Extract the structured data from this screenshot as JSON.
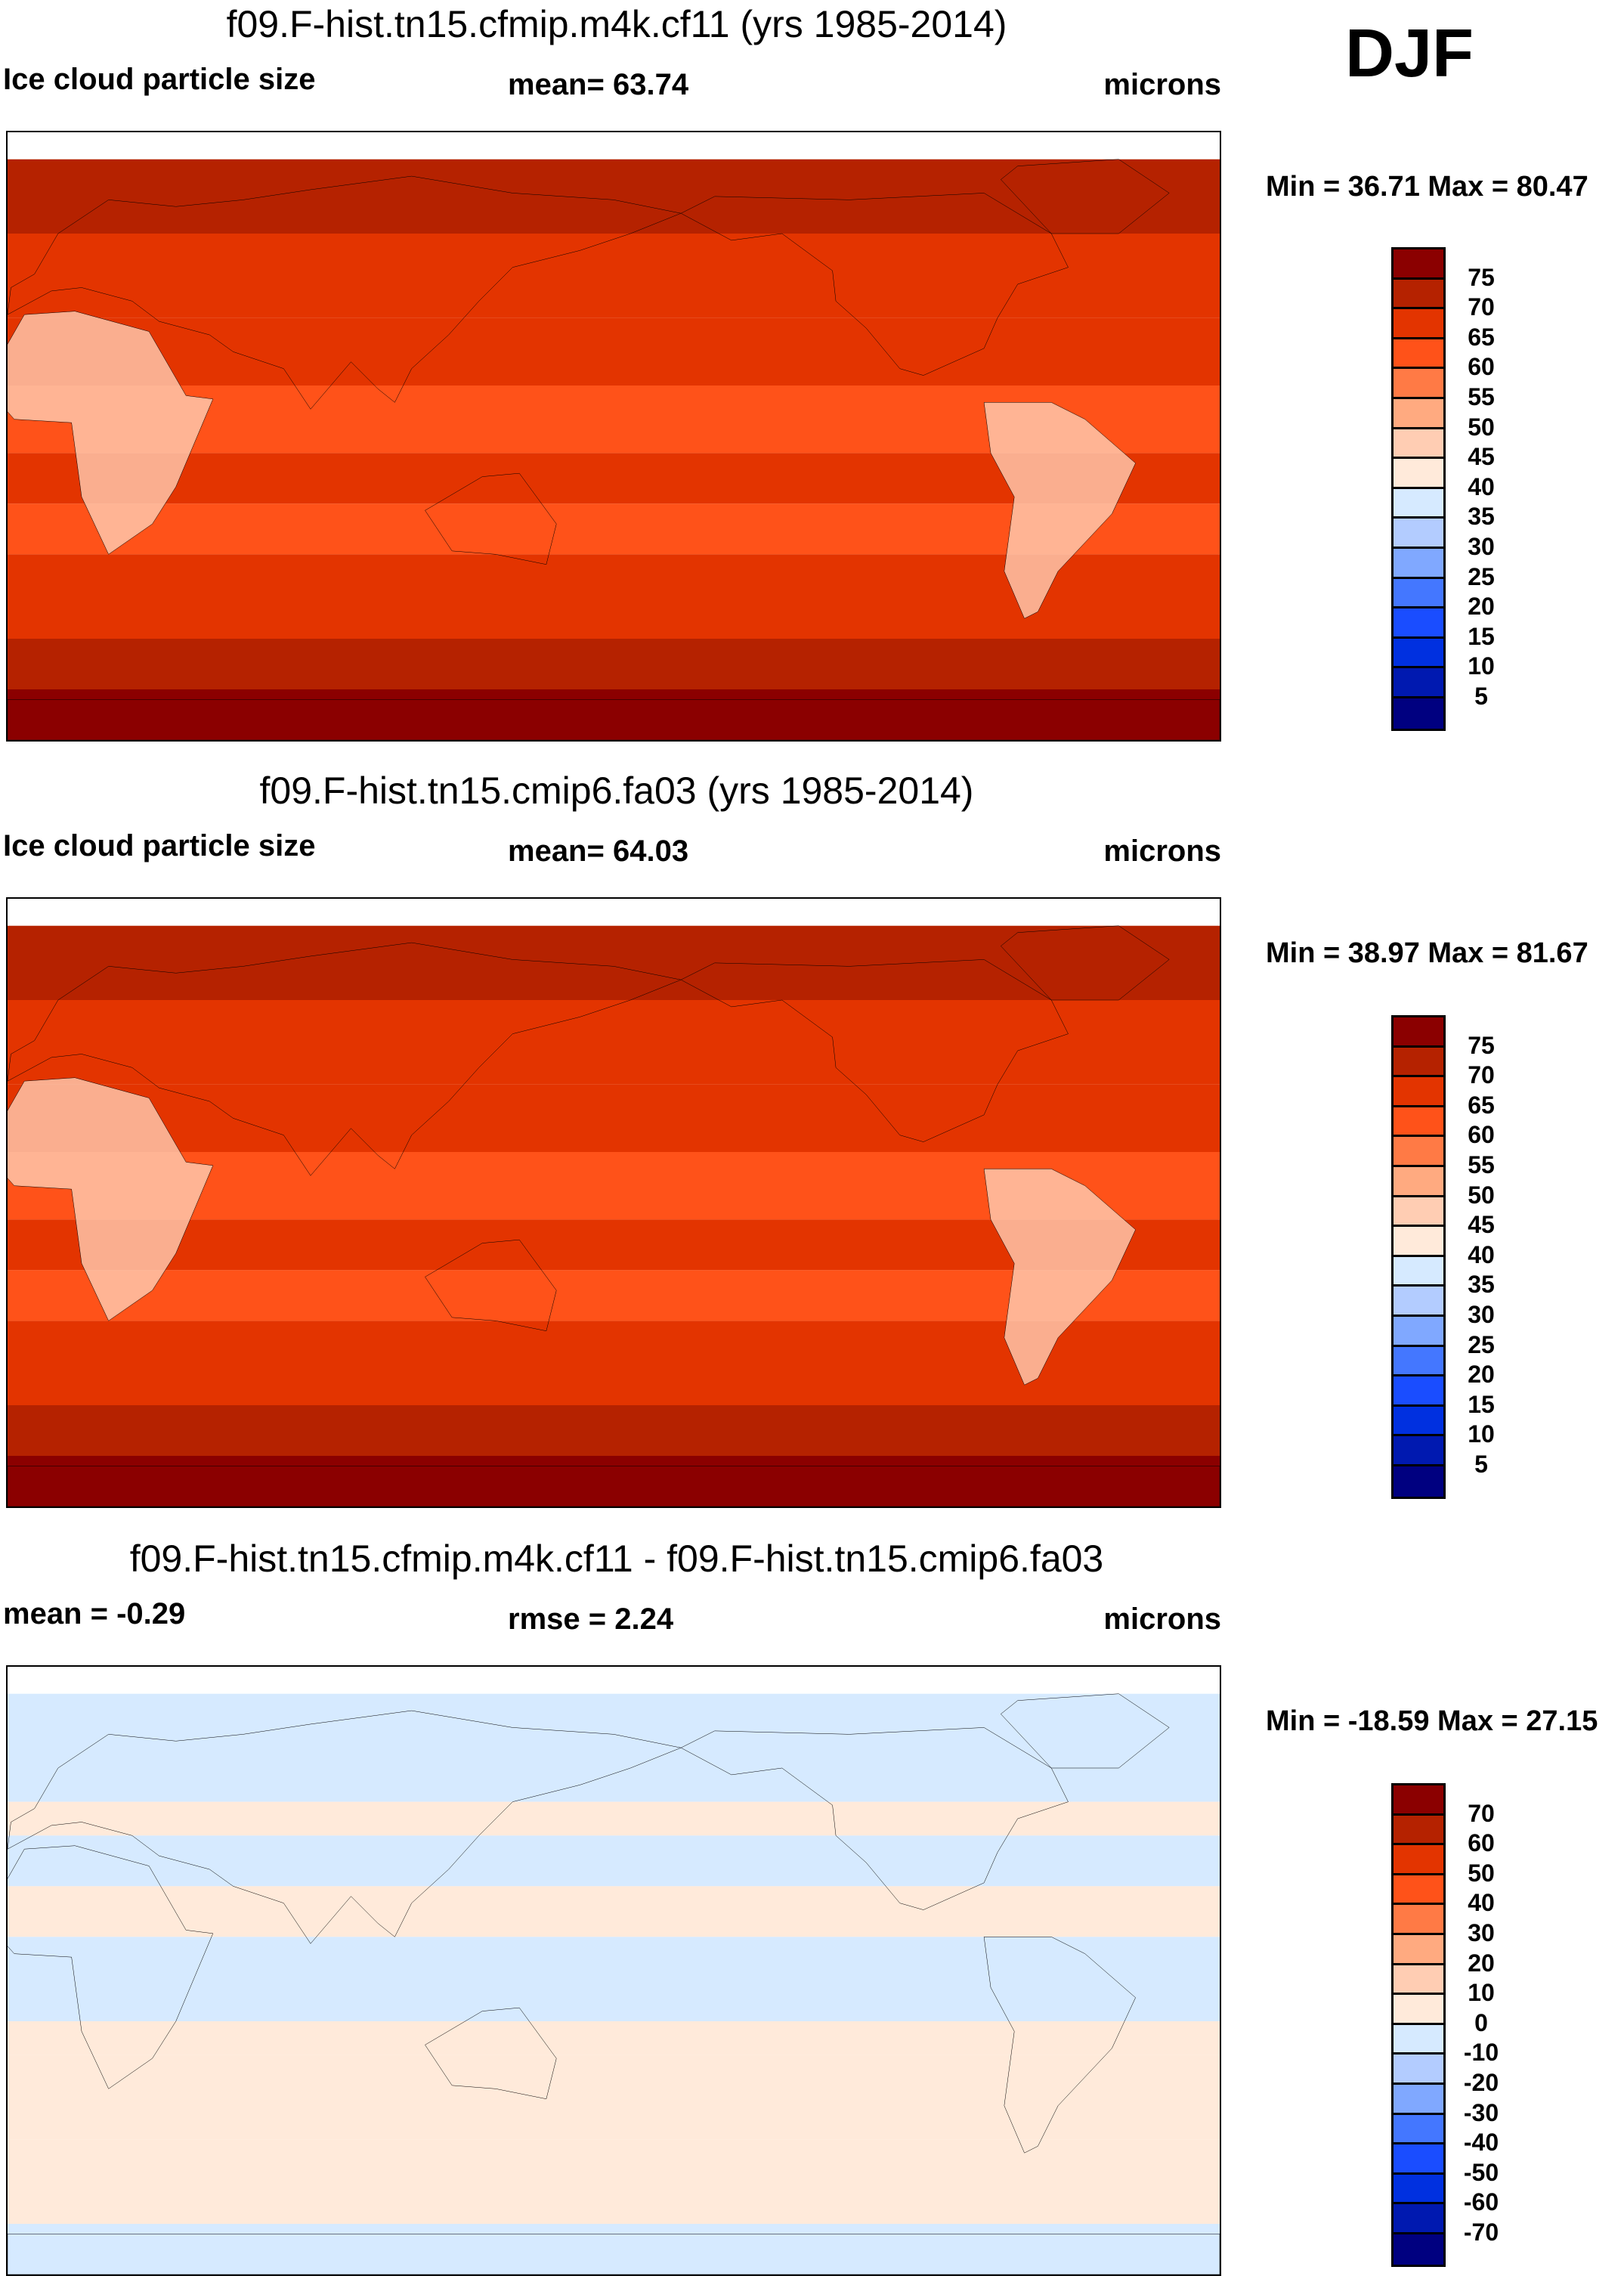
{
  "season": "DJF",
  "colors": [
    "#8b0000",
    "#b52200",
    "#e33400",
    "#ff5219",
    "#ff7a45",
    "#ffaa80",
    "#ffcdb3",
    "#ffeada",
    "#d6eaff",
    "#b3ccff",
    "#80a8ff",
    "#4477ff",
    "#1a4dff",
    "#0030e0",
    "#0019b0",
    "#000080"
  ],
  "panels": [
    {
      "title": "f09.F-hist.tn15.cfmip.m4k.cf11 (yrs 1985-2014)",
      "left": "Ice cloud particle size",
      "center": "mean=  63.74",
      "right": "microns",
      "minmax": "Min =  36.71 Max =  80.47",
      "kind": "abs"
    },
    {
      "title": "f09.F-hist.tn15.cmip6.fa03 (yrs 1985-2014)",
      "left": "Ice cloud particle size",
      "center": "mean=  64.03",
      "right": "microns",
      "minmax": "Min =  38.97 Max =  81.67",
      "kind": "abs"
    },
    {
      "title": "f09.F-hist.tn15.cfmip.m4k.cf11 - f09.F-hist.tn15.cmip6.fa03",
      "left": "mean =  -0.29",
      "center": "rmse =   2.24",
      "right": "microns",
      "minmax": "Min = -18.59 Max =  27.15",
      "kind": "diff"
    }
  ],
  "chart_data": [
    {
      "type": "heatmap",
      "title": "f09.F-hist.tn15.cfmip.m4k.cf11 (yrs 1985-2014)",
      "variable": "Ice cloud particle size",
      "units": "microns",
      "mean": 63.74,
      "min": 36.71,
      "max": 80.47,
      "levels": [
        "75",
        "70",
        "65",
        "60",
        "55",
        "50",
        "45",
        "40",
        "35",
        "30",
        "25",
        "20",
        "15",
        "10",
        "5"
      ]
    },
    {
      "type": "heatmap",
      "title": "f09.F-hist.tn15.cmip6.fa03 (yrs 1985-2014)",
      "variable": "Ice cloud particle size",
      "units": "microns",
      "mean": 64.03,
      "min": 38.97,
      "max": 81.67,
      "levels": [
        "75",
        "70",
        "65",
        "60",
        "55",
        "50",
        "45",
        "40",
        "35",
        "30",
        "25",
        "20",
        "15",
        "10",
        "5"
      ]
    },
    {
      "type": "heatmap",
      "title": "f09.F-hist.tn15.cfmip.m4k.cf11 - f09.F-hist.tn15.cmip6.fa03",
      "units": "microns",
      "mean": -0.29,
      "rmse": 2.24,
      "min": -18.59,
      "max": 27.15,
      "levels": [
        "70",
        "60",
        "50",
        "40",
        "30",
        "20",
        "10",
        "0",
        "-10",
        "-20",
        "-30",
        "-40",
        "-50",
        "-60",
        "-70"
      ]
    }
  ]
}
